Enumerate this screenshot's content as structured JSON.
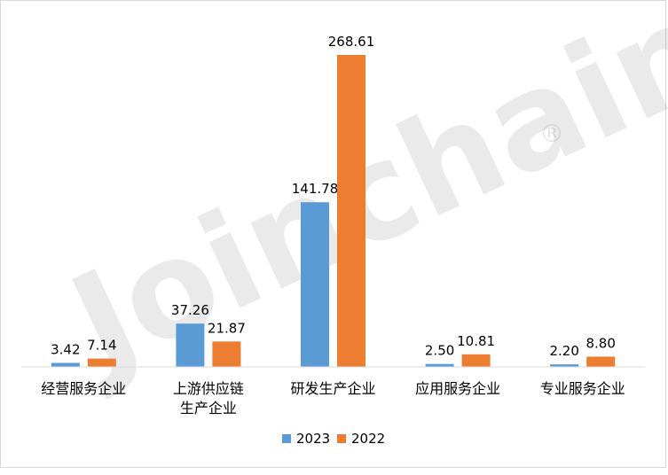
{
  "chart_data": {
    "type": "bar",
    "categories": [
      [
        "经营服务企业"
      ],
      [
        "上游供应链",
        "生产企业"
      ],
      [
        "研发生产企业"
      ],
      [
        "应用服务企业"
      ],
      [
        "专业服务企业"
      ]
    ],
    "series": [
      {
        "name": "2023",
        "color": "#5b9bd5",
        "values": [
          3.42,
          37.26,
          141.78,
          2.5,
          2.2
        ],
        "labels": [
          "3.42",
          "37.26",
          "141.78",
          "2.50",
          "2.20"
        ]
      },
      {
        "name": "2022",
        "color": "#ed7d31",
        "values": [
          7.14,
          21.87,
          268.61,
          10.81,
          8.8
        ],
        "labels": [
          "7.14",
          "21.87",
          "268.61",
          "10.81",
          "8.80"
        ]
      }
    ],
    "ylim": [
      0,
      268.61
    ],
    "grid": false,
    "legend_position": "bottom-center"
  },
  "watermark": {
    "text": "Joinchain",
    "mark": "®"
  }
}
